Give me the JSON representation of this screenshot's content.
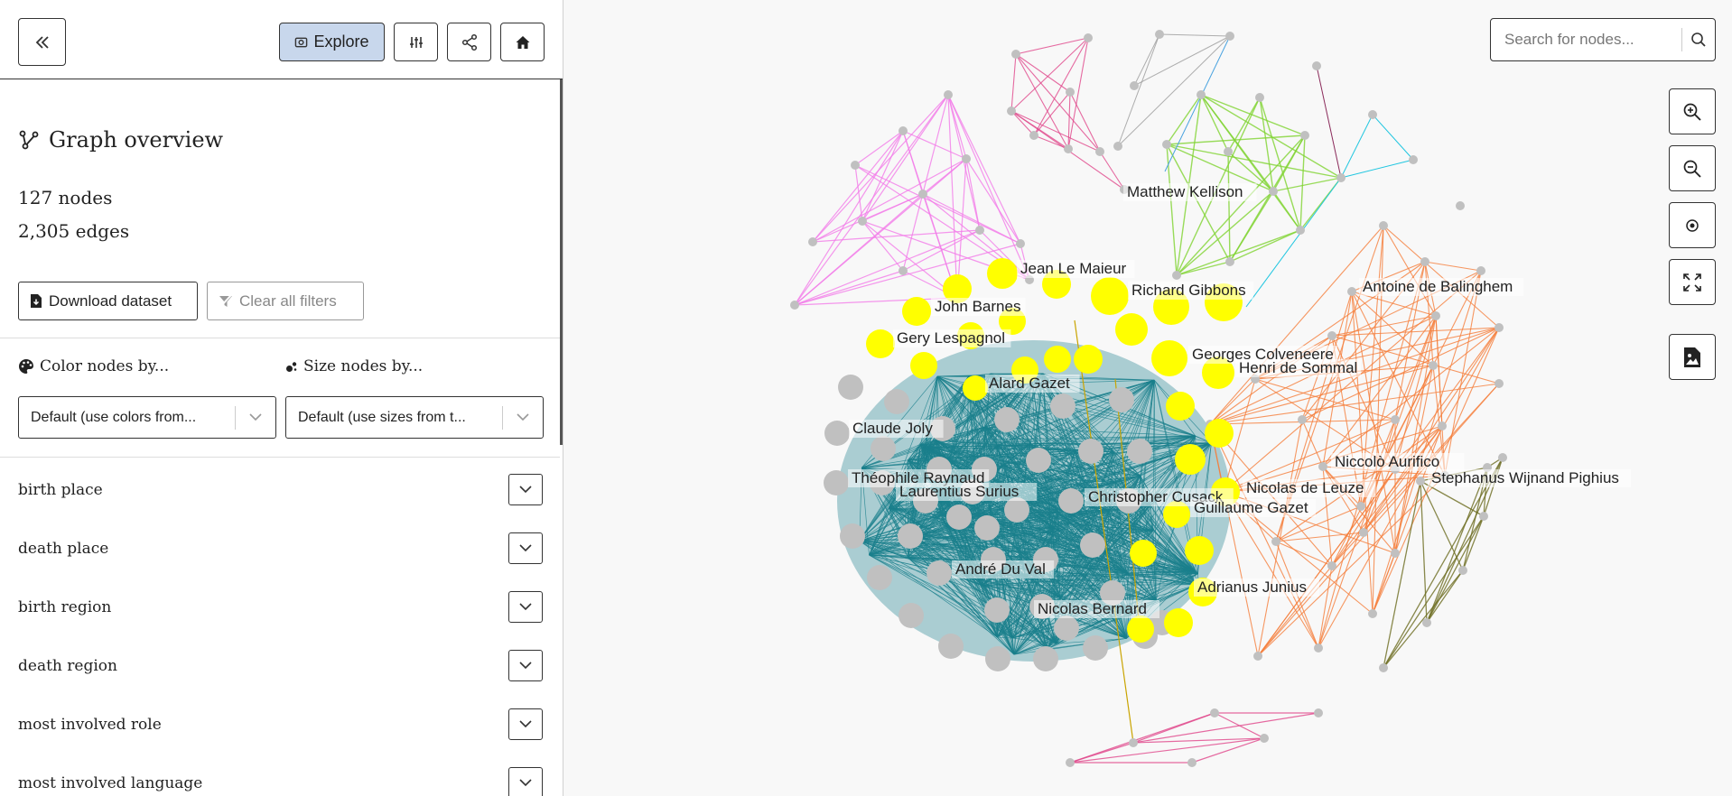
{
  "toolbar": {
    "explore_label": "Explore"
  },
  "overview": {
    "title": "Graph overview",
    "nodes": "127 nodes",
    "edges": "2,305 edges",
    "download_label": "Download dataset",
    "clear_label": "Clear all filters"
  },
  "selectors": {
    "color_label": "Color nodes by...",
    "size_label": "Size nodes by...",
    "color_value": "Default (use colors from...",
    "size_value": "Default (use sizes from t..."
  },
  "facets": [
    {
      "label": "birth place"
    },
    {
      "label": "death place"
    },
    {
      "label": "birth region"
    },
    {
      "label": "death region"
    },
    {
      "label": "most involved role"
    },
    {
      "label": "most involved language"
    }
  ],
  "search": {
    "placeholder": "Search for nodes..."
  },
  "graph": {
    "labels": [
      "Matthew Kellison",
      "Jean Le Maieur",
      "Richard Gibbons",
      "Antoine de Balinghem",
      "John Barnes",
      "Gery Lespagnol",
      "Georges Colveneere",
      "Henri de Sommal",
      "Alard Gazet",
      "Claude Joly",
      "Niccolò Aurifico",
      "Théophile Raynaud",
      "Stephanus Wijnand Pighius",
      "Laurentius Surius",
      "Nicolas de Leuze",
      "Christopher Cusack",
      "Guillaume Gazet",
      "André Du Val",
      "Adrianus Junius",
      "Nicolas Bernard"
    ],
    "colors": {
      "teal": "#1a7f8c",
      "yellow": "#ffff00",
      "orange": "#f57d3a",
      "pink": "#f37ce8",
      "green": "#7fd331",
      "gray_node": "#c0c0c0"
    }
  }
}
